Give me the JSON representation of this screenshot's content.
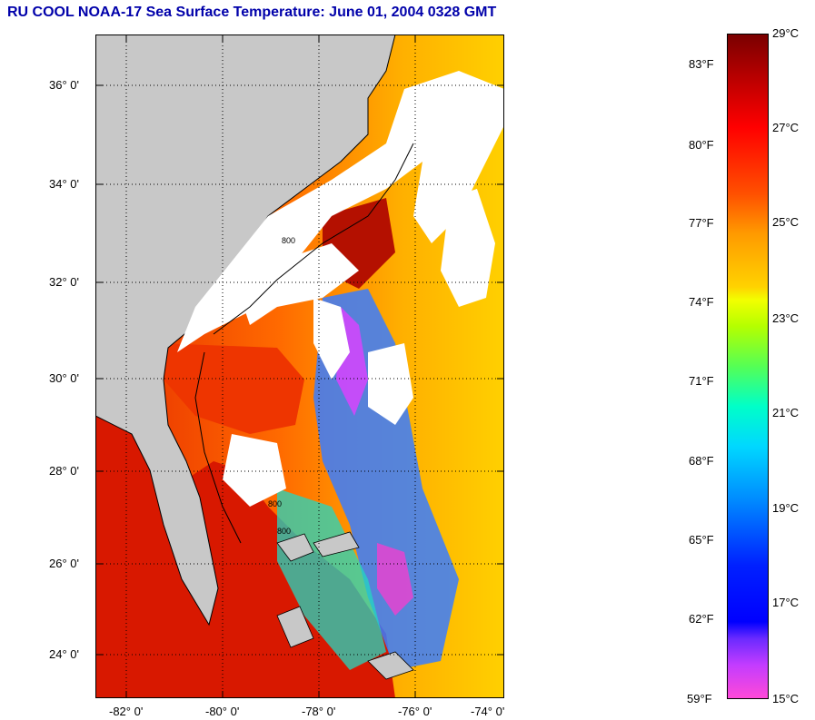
{
  "title": "RU COOL  NOAA-17  Sea Surface Temperature:  June 01, 2004 0328 GMT",
  "map": {
    "lat_labels": [
      "36° 0'",
      "34° 0'",
      "32° 0'",
      "30° 0'",
      "28° 0'",
      "26° 0'",
      "24° 0'"
    ],
    "lon_labels": [
      "-82° 0'",
      "-80° 0'",
      "-78° 0'",
      "-76° 0'",
      "-74° 0'"
    ],
    "contour_labels": [
      "800",
      "800",
      "800"
    ],
    "colors": {
      "land": "#c8c8c8",
      "cloud": "#ffffff",
      "warm": "#ee2200",
      "frame": "#000000"
    }
  },
  "colorbar": {
    "fahrenheit": [
      "83°F",
      "80°F",
      "77°F",
      "74°F",
      "71°F",
      "68°F",
      "65°F",
      "62°F",
      "59°F"
    ],
    "celsius": [
      "29°C",
      "27°C",
      "25°C",
      "23°C",
      "21°C",
      "19°C",
      "17°C",
      "15°C"
    ]
  }
}
